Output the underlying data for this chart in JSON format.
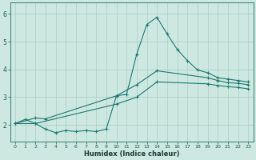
{
  "xlabel": "Humidex (Indice chaleur)",
  "xlim": [
    -0.5,
    23.5
  ],
  "ylim": [
    1.4,
    6.4
  ],
  "xticks": [
    0,
    1,
    2,
    3,
    4,
    5,
    6,
    7,
    8,
    9,
    10,
    11,
    12,
    13,
    14,
    15,
    16,
    17,
    18,
    19,
    20,
    21,
    22,
    23
  ],
  "yticks": [
    2,
    3,
    4,
    5,
    6
  ],
  "bg_color": "#cce8e0",
  "line_color": "#1a7a6e",
  "grid_color": "#aacec6",
  "figsize": [
    3.2,
    2.0
  ],
  "dpi": 100,
  "line1_x": [
    0,
    1,
    2,
    3,
    4,
    5,
    6,
    7,
    8,
    9,
    10,
    11,
    12,
    13,
    14,
    15,
    16,
    17,
    18,
    19,
    20,
    21,
    22,
    23
  ],
  "line1_y": [
    2.05,
    2.2,
    2.05,
    1.85,
    1.72,
    1.8,
    1.76,
    1.8,
    1.76,
    1.85,
    3.05,
    3.1,
    4.55,
    5.62,
    5.88,
    5.28,
    4.72,
    4.32,
    3.98,
    3.88,
    3.7,
    3.65,
    3.6,
    3.55
  ],
  "line2_x": [
    0,
    2,
    3,
    10,
    12,
    14,
    19,
    20,
    21,
    22,
    23
  ],
  "line2_y": [
    2.05,
    2.25,
    2.22,
    3.05,
    3.45,
    3.95,
    3.7,
    3.6,
    3.52,
    3.5,
    3.45
  ],
  "line3_x": [
    0,
    2,
    10,
    12,
    14,
    19,
    20,
    21,
    22,
    23
  ],
  "line3_y": [
    2.05,
    2.05,
    2.75,
    3.0,
    3.55,
    3.48,
    3.42,
    3.38,
    3.35,
    3.3
  ]
}
